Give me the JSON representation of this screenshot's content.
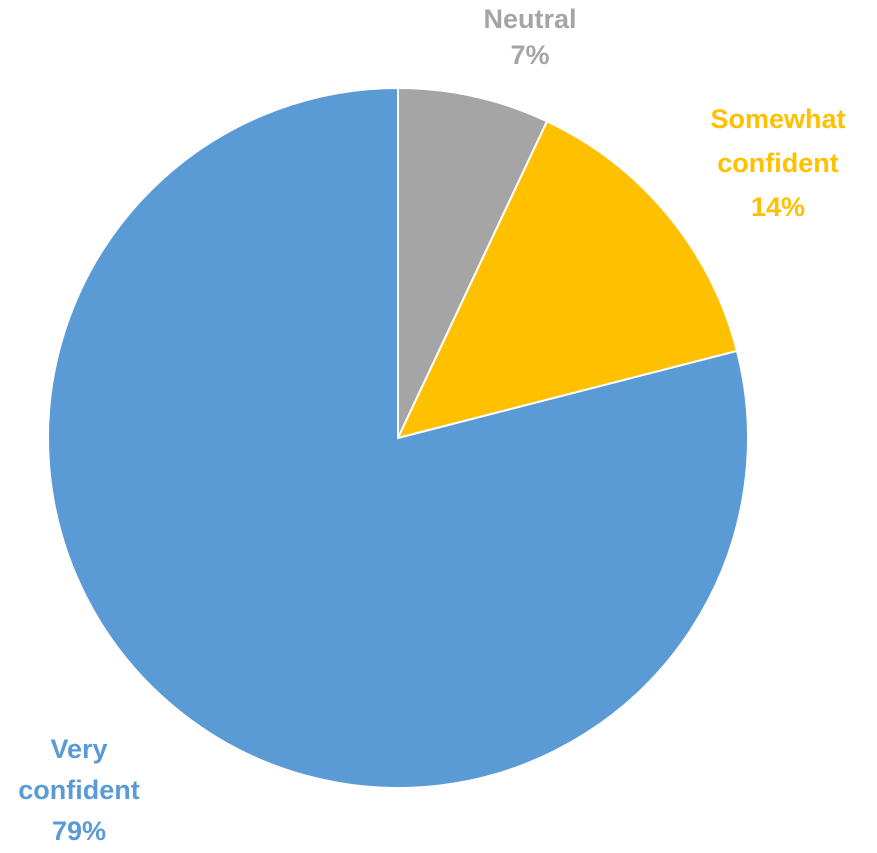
{
  "chart_data": {
    "type": "pie",
    "title": "",
    "slices": [
      {
        "label_lines": [
          "Neutral"
        ],
        "percent_label": "7%",
        "value": 7,
        "color": "#A5A5A5"
      },
      {
        "label_lines": [
          "Somewhat",
          "confident"
        ],
        "percent_label": "14%",
        "value": 14,
        "color": "#FFC000"
      },
      {
        "label_lines": [
          "Very",
          "confident"
        ],
        "percent_label": "79%",
        "value": 79,
        "color": "#5B9BD5"
      }
    ],
    "start_angle_deg": 0,
    "direction": "clockwise",
    "legend": "none",
    "label_placement": "outside"
  }
}
